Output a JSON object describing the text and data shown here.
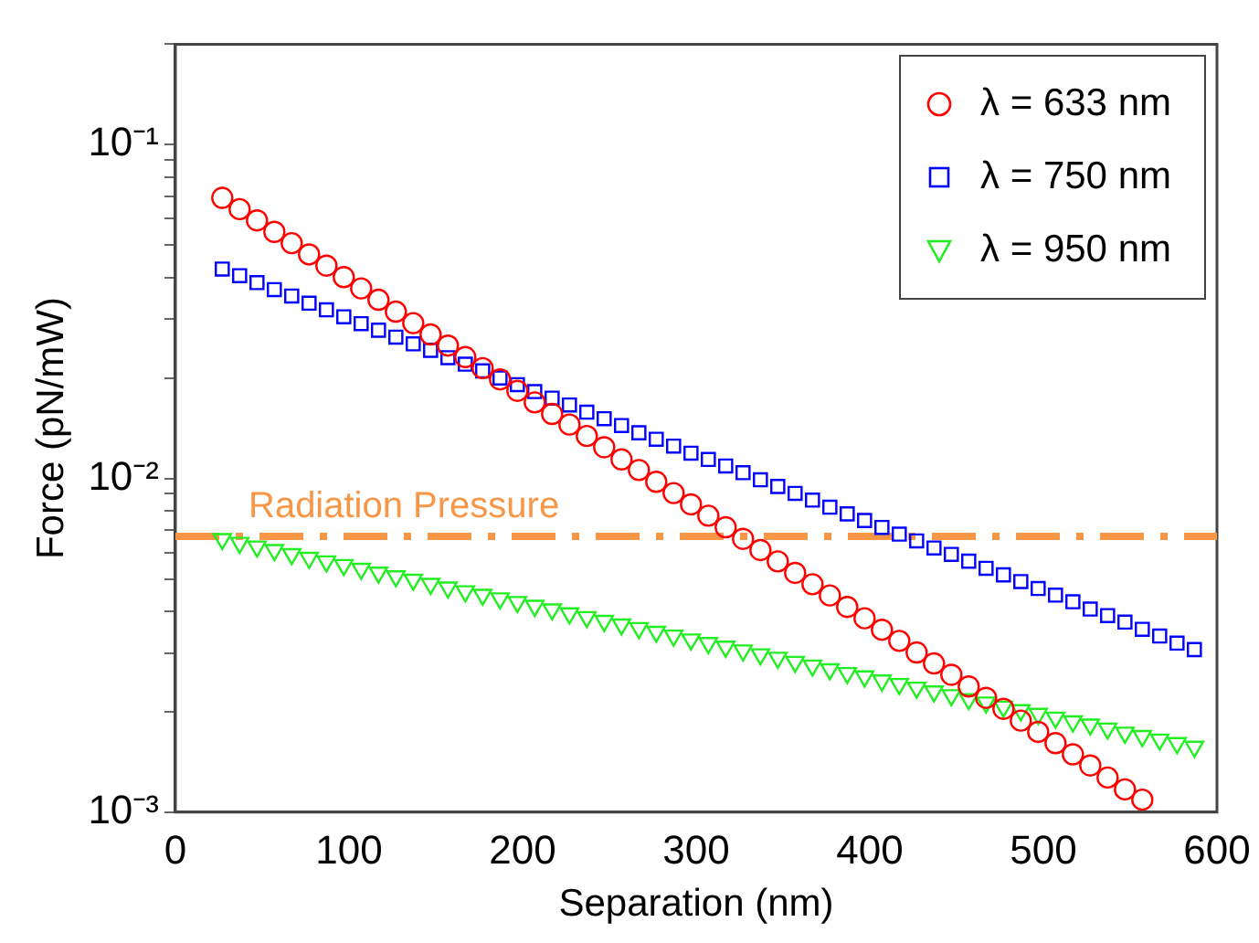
{
  "chart_data": {
    "type": "scatter",
    "xlabel": "Separation (nm)",
    "ylabel": "Force (pN/mW)",
    "x": [
      27,
      37,
      47,
      57,
      67,
      77,
      87,
      97,
      107,
      117,
      127,
      137,
      147,
      157,
      167,
      177,
      187,
      197,
      207,
      217,
      227,
      237,
      247,
      257,
      267,
      277,
      287,
      297,
      307,
      317,
      327,
      337,
      347,
      357,
      367,
      377,
      387,
      397,
      407,
      417,
      427,
      437,
      447,
      457,
      467,
      477,
      487,
      497,
      507,
      517,
      527,
      537,
      547,
      557,
      567,
      577,
      587
    ],
    "series": [
      {
        "name": "λ = 633 nm",
        "color": "#ff0000",
        "marker": "circle",
        "values": [
          0.0693,
          0.0641,
          0.0593,
          0.0548,
          0.0507,
          0.0469,
          0.0434,
          0.0401,
          0.0371,
          0.0343,
          0.0316,
          0.0292,
          0.027,
          0.025,
          0.0231,
          0.0214,
          0.0198,
          0.0183,
          0.0169,
          0.0156,
          0.0145,
          0.0134,
          0.0124,
          0.0114,
          0.0106,
          0.00977,
          0.00904,
          0.00836,
          0.00773,
          0.00714,
          0.00659,
          0.0061,
          0.00564,
          0.00521,
          0.00482,
          0.00446,
          0.00412,
          0.00381,
          0.00352,
          0.00326,
          0.00301,
          0.00279,
          0.00258,
          0.00238,
          0.0022,
          0.00204,
          0.00188,
          0.00174,
          0.00161,
          0.00149,
          0.00138,
          0.00127,
          0.00117,
          0.00109,
          null,
          null,
          null
        ]
      },
      {
        "name": "λ = 750 nm",
        "color": "#0000ff",
        "marker": "square",
        "values": [
          0.0424,
          0.0405,
          0.0386,
          0.0368,
          0.0352,
          0.0335,
          0.032,
          0.0305,
          0.0291,
          0.0278,
          0.0265,
          0.0253,
          0.0242,
          0.023,
          0.022,
          0.021,
          0.02,
          0.0191,
          0.0182,
          0.0174,
          0.0166,
          0.0158,
          0.0151,
          0.0144,
          0.0137,
          0.0131,
          0.0125,
          0.0119,
          0.0114,
          0.0109,
          0.0104,
          0.00991,
          0.00946,
          0.00902,
          0.00861,
          0.0082,
          0.00783,
          0.00748,
          0.00713,
          0.00681,
          0.0065,
          0.00619,
          0.00592,
          0.00565,
          0.00538,
          0.00514,
          0.00491,
          0.00468,
          0.00447,
          0.00427,
          0.00406,
          0.00388,
          0.00371,
          0.00353,
          0.00337,
          0.00321,
          0.00307
        ]
      },
      {
        "name": "λ = 950 nm",
        "color": "#22ee22",
        "marker": "triangle",
        "values": [
          0.00658,
          0.00641,
          0.00625,
          0.0061,
          0.00593,
          0.00578,
          0.00564,
          0.0055,
          0.00536,
          0.00522,
          0.00509,
          0.00497,
          0.00483,
          0.00471,
          0.00459,
          0.00448,
          0.00437,
          0.00426,
          0.00415,
          0.00405,
          0.00394,
          0.00384,
          0.00374,
          0.00365,
          0.00356,
          0.00347,
          0.00338,
          0.00329,
          0.00321,
          0.00313,
          0.00305,
          0.00297,
          0.0029,
          0.00282,
          0.00275,
          0.00268,
          0.00261,
          0.00255,
          0.00248,
          0.00242,
          0.00236,
          0.0023,
          0.00224,
          0.00218,
          0.00213,
          0.00207,
          0.00202,
          0.00197,
          0.00192,
          0.00187,
          0.00183,
          0.00178,
          0.00173,
          0.00169,
          0.00165,
          0.00161,
          0.00157
        ]
      }
    ],
    "xlim": [
      0,
      600
    ],
    "xticks": [
      0,
      100,
      200,
      300,
      400,
      500,
      600
    ],
    "log": "y",
    "ylim": [
      0.001,
      0.2
    ],
    "yticks": [
      {
        "value": 0.001,
        "label": "10⁻³"
      },
      {
        "value": 0.002,
        "label": null
      },
      {
        "value": 0.003,
        "label": null
      },
      {
        "value": 0.004,
        "label": null
      },
      {
        "value": 0.005,
        "label": null
      },
      {
        "value": 0.006,
        "label": null
      },
      {
        "value": 0.007,
        "label": null
      },
      {
        "value": 0.008,
        "label": null
      },
      {
        "value": 0.009,
        "label": null
      },
      {
        "value": 0.01,
        "label": "10⁻²"
      },
      {
        "value": 0.02,
        "label": null
      },
      {
        "value": 0.03,
        "label": null
      },
      {
        "value": 0.04,
        "label": null
      },
      {
        "value": 0.05,
        "label": null
      },
      {
        "value": 0.06,
        "label": null
      },
      {
        "value": 0.07,
        "label": null
      },
      {
        "value": 0.08,
        "label": null
      },
      {
        "value": 0.09,
        "label": null
      },
      {
        "value": 0.1,
        "label": "10⁻¹"
      },
      {
        "value": 0.2,
        "label": null
      }
    ],
    "ref_lines": [
      {
        "axis": "y",
        "value": 0.0067,
        "label": "Radiation Pressure",
        "color": "#f79646",
        "line_style": "dashed"
      }
    ],
    "grid": false,
    "legend": "top right"
  }
}
